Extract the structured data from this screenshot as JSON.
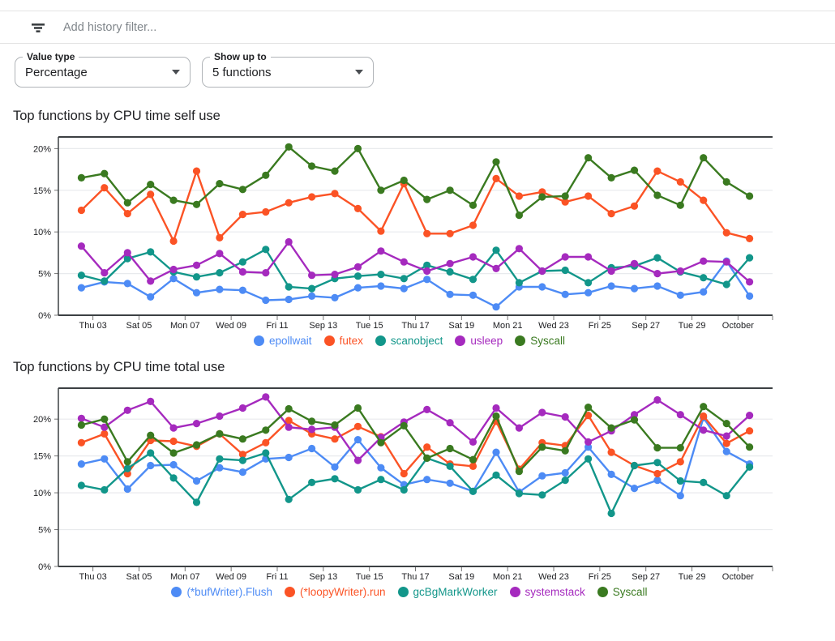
{
  "filter_bar": {
    "icon": "filter-list-icon",
    "placeholder": "Add history filter..."
  },
  "controls": {
    "value_type": {
      "label": "Value type",
      "value": "Percentage"
    },
    "show_up_to": {
      "label": "Show up to",
      "value": "5 functions"
    }
  },
  "chart_data": [
    {
      "type": "line",
      "title": "Top functions by CPU time self use",
      "xlabel": "",
      "ylabel": "",
      "grid": true,
      "legend_position": "bottom",
      "ylim": [
        0,
        21.4
      ],
      "ytick_values": [
        0,
        5,
        10,
        15,
        20
      ],
      "ytick_labels": [
        "0%",
        "5%",
        "10%",
        "15%",
        "20%"
      ],
      "categories": [
        "Thu 03",
        "Sat 05",
        "Mon 07",
        "Wed 09",
        "Fri 11",
        "Sep 13",
        "Tue 15",
        "Thu 17",
        "Sat 19",
        "Mon 21",
        "Wed 23",
        "Fri 25",
        "Sep 27",
        "Tue 29",
        "October"
      ],
      "series": [
        {
          "name": "epollwait",
          "color": "#4D8BF5",
          "values": [
            3.3,
            4.0,
            3.8,
            2.2,
            4.4,
            2.7,
            3.1,
            3.0,
            1.8,
            1.9,
            2.3,
            2.1,
            3.3,
            3.5,
            3.2,
            4.3,
            2.5,
            2.4,
            1.0,
            3.4,
            3.4,
            2.5,
            2.7,
            3.5,
            3.2,
            3.5,
            2.4,
            2.8,
            6.5,
            2.3
          ]
        },
        {
          "name": "futex",
          "color": "#FB5325",
          "values": [
            12.6,
            15.3,
            12.2,
            14.5,
            8.9,
            17.3,
            9.3,
            12.1,
            12.4,
            13.5,
            14.2,
            14.6,
            12.8,
            10.1,
            15.8,
            9.8,
            9.8,
            10.8,
            16.4,
            14.3,
            14.8,
            13.6,
            14.3,
            12.2,
            13.1,
            17.3,
            16.0,
            13.8,
            9.9,
            9.2
          ]
        },
        {
          "name": "scanobject",
          "color": "#12968A",
          "values": [
            4.8,
            4.1,
            6.8,
            7.6,
            5.2,
            4.6,
            5.1,
            6.4,
            7.9,
            3.4,
            3.2,
            4.4,
            4.7,
            4.9,
            4.4,
            6.0,
            5.2,
            4.3,
            7.8,
            3.9,
            5.3,
            5.4,
            3.9,
            5.7,
            5.9,
            6.9,
            5.2,
            4.5,
            3.7,
            6.9
          ]
        },
        {
          "name": "usleep",
          "color": "#A52ABE",
          "values": [
            8.3,
            5.1,
            7.5,
            4.1,
            5.5,
            6.0,
            7.4,
            5.2,
            5.1,
            8.8,
            4.8,
            4.9,
            5.8,
            7.7,
            6.4,
            5.3,
            6.2,
            7.0,
            5.6,
            8.0,
            5.3,
            7.0,
            7.0,
            5.3,
            6.2,
            5.0,
            5.3,
            6.5,
            6.4,
            4.0
          ]
        },
        {
          "name": "Syscall",
          "color": "#3A7A20",
          "values": [
            16.5,
            17.0,
            13.5,
            15.7,
            13.8,
            13.3,
            15.8,
            15.1,
            16.8,
            20.2,
            17.9,
            17.3,
            20.0,
            15.0,
            16.2,
            13.9,
            15.0,
            13.2,
            18.4,
            12.0,
            14.2,
            14.3,
            18.9,
            16.5,
            17.4,
            14.4,
            13.2,
            18.9,
            16.0,
            14.3
          ]
        }
      ]
    },
    {
      "type": "line",
      "title": "Top functions by CPU time total use",
      "xlabel": "",
      "ylabel": "",
      "grid": true,
      "legend_position": "bottom",
      "ylim": [
        0,
        24.2
      ],
      "ytick_values": [
        0,
        5,
        10,
        15,
        20
      ],
      "ytick_labels": [
        "0%",
        "5%",
        "10%",
        "15%",
        "20%"
      ],
      "categories": [
        "Thu 03",
        "Sat 05",
        "Mon 07",
        "Wed 09",
        "Fri 11",
        "Sep 13",
        "Tue 15",
        "Thu 17",
        "Sat 19",
        "Mon 21",
        "Wed 23",
        "Fri 25",
        "Sep 27",
        "Tue 29",
        "October"
      ],
      "series": [
        {
          "name": "(*bufWriter).Flush",
          "color": "#4D8BF5",
          "values": [
            13.9,
            14.6,
            10.5,
            13.7,
            13.8,
            11.6,
            13.4,
            12.8,
            14.6,
            14.8,
            16.0,
            13.5,
            17.2,
            13.4,
            11.1,
            11.8,
            11.3,
            10.2,
            15.5,
            10.1,
            12.3,
            12.7,
            16.2,
            12.5,
            10.6,
            11.7,
            9.6,
            20.2,
            15.6,
            13.9
          ]
        },
        {
          "name": "(*loopyWriter).run",
          "color": "#FB5325",
          "values": [
            16.8,
            18.0,
            12.6,
            17.1,
            17.0,
            16.3,
            18.0,
            15.2,
            16.8,
            19.8,
            18.0,
            17.3,
            19.0,
            17.6,
            12.6,
            16.2,
            13.9,
            13.6,
            19.7,
            13.2,
            16.8,
            16.4,
            20.5,
            15.5,
            13.7,
            12.6,
            14.2,
            20.4,
            16.7,
            18.4
          ]
        },
        {
          "name": "gcBgMarkWorker",
          "color": "#12968A",
          "values": [
            11.0,
            10.4,
            13.3,
            15.4,
            12.0,
            8.7,
            14.6,
            14.4,
            15.4,
            9.1,
            11.4,
            11.9,
            10.4,
            11.8,
            10.4,
            14.7,
            13.6,
            10.2,
            12.4,
            9.9,
            9.7,
            11.7,
            14.6,
            7.2,
            13.7,
            14.1,
            11.6,
            11.4,
            9.6,
            13.5
          ]
        },
        {
          "name": "systemstack",
          "color": "#A52ABE",
          "values": [
            20.1,
            18.9,
            21.2,
            22.4,
            18.8,
            19.4,
            20.4,
            21.5,
            23.0,
            18.9,
            18.6,
            18.9,
            14.4,
            17.5,
            19.6,
            21.3,
            19.5,
            16.9,
            21.5,
            18.8,
            20.9,
            20.3,
            16.9,
            18.4,
            20.6,
            22.6,
            20.6,
            18.5,
            17.7,
            20.5
          ]
        },
        {
          "name": "Syscall",
          "color": "#3A7A20",
          "values": [
            19.2,
            20.0,
            14.2,
            17.8,
            15.4,
            16.5,
            18.0,
            17.3,
            18.5,
            21.4,
            19.7,
            19.2,
            21.5,
            16.8,
            19.1,
            14.7,
            16.0,
            14.5,
            20.4,
            12.9,
            16.2,
            15.7,
            21.6,
            18.8,
            19.9,
            16.1,
            16.1,
            21.7,
            19.4,
            16.2
          ]
        }
      ]
    }
  ]
}
